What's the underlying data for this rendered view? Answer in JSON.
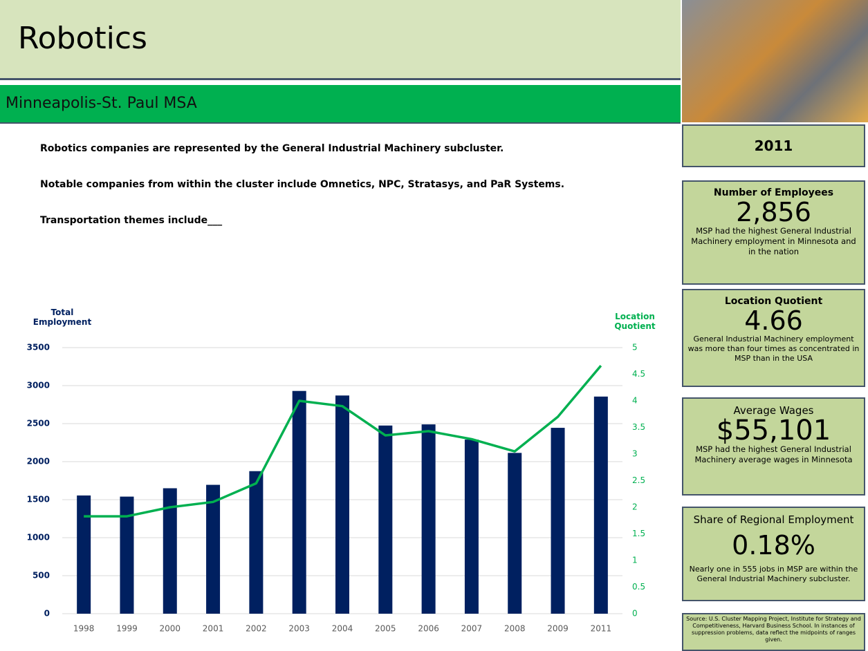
{
  "header": {
    "title": "Robotics",
    "subtitle": "Minneapolis-St. Paul MSA"
  },
  "notes": [
    "Robotics companies are represented by the General Industrial Machinery subcluster.",
    "Notable companies from within the cluster include Omnetics, NPC, Stratasys, and PaR Systems.",
    "Transportation themes include___"
  ],
  "panel": {
    "year": "2011",
    "stats": [
      {
        "title": "Number of Employees",
        "value": "2,856",
        "text": "MSP had the highest General Industrial Machinery employment in Minnesota and in the nation"
      },
      {
        "title": "Location Quotient",
        "value": "4.66",
        "text": "General Industrial Machinery employment was more than four times as concentrated in MSP than in the USA"
      },
      {
        "title": "Average Wages",
        "value": "$55,101",
        "text": "MSP had the highest General Industrial Machinery average wages in Minnesota"
      },
      {
        "title": "Share of Regional Employment",
        "value": "0.18%",
        "text": "Nearly one in 555 jobs in MSP are within the General Industrial Machinery subcluster."
      }
    ],
    "source": "Source: U.S. Cluster Mapping Project, Institute for Strategy and Competitiveness, Harvard Business School. In instances of suppression problems, data reflect the midpoints of ranges given."
  },
  "chart_data": {
    "type": "bar",
    "ylabel": "Total Employment",
    "y2label": "Location Quotient",
    "categories": [
      "1998",
      "1999",
      "2000",
      "2001",
      "2002",
      "2003",
      "2004",
      "2005",
      "2006",
      "2007",
      "2008",
      "2009",
      "2011"
    ],
    "series": [
      {
        "type": "bar",
        "color": "#002060",
        "values": [
          1555,
          1540,
          1650,
          1695,
          1875,
          2930,
          2870,
          2475,
          2490,
          2290,
          2115,
          2445,
          2856
        ]
      },
      {
        "type": "line",
        "color": "#00b050",
        "axis": "y2",
        "values": [
          1.83,
          1.83,
          2.0,
          2.1,
          2.45,
          4.0,
          3.9,
          3.35,
          3.43,
          3.28,
          3.05,
          3.7,
          4.66
        ]
      }
    ],
    "ylim": [
      0,
      3500
    ],
    "yticks": [
      0,
      500,
      1000,
      1500,
      2000,
      2500,
      3000,
      3500
    ],
    "y2lim": [
      0,
      5
    ],
    "y2ticks": [
      0,
      0.5,
      1,
      1.5,
      2,
      2.5,
      3,
      3.5,
      4,
      4.5,
      5
    ],
    "grid": true
  }
}
